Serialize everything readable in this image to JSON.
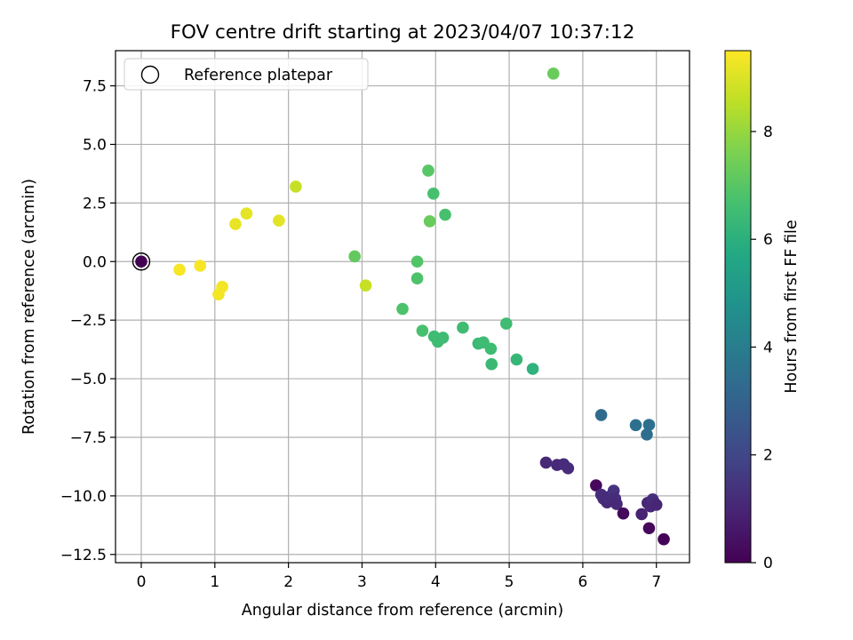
{
  "chart_data": {
    "type": "scatter",
    "title": "FOV centre drift starting at 2023/04/07 10:37:12",
    "xlabel": "Angular distance from reference (arcmin)",
    "ylabel": "Rotation from reference (arcmin)",
    "xlim": [
      -0.35,
      7.45
    ],
    "ylim": [
      -12.85,
      9.0
    ],
    "xticks": [
      0,
      1,
      2,
      3,
      4,
      5,
      6,
      7
    ],
    "xtick_labels": [
      "0",
      "1",
      "2",
      "3",
      "4",
      "5",
      "6",
      "7"
    ],
    "yticks": [
      -12.5,
      -10.0,
      -7.5,
      -5.0,
      -2.5,
      0.0,
      2.5,
      5.0,
      7.5
    ],
    "ytick_labels": [
      "−12.5",
      "−10.0",
      "−7.5",
      "−5.0",
      "−2.5",
      "0.0",
      "2.5",
      "5.0",
      "7.5"
    ],
    "grid": true,
    "legend": {
      "position": "top-left",
      "entries": [
        "Reference platepar"
      ]
    },
    "colorbar": {
      "label": "Hours from first FF file",
      "range": [
        0,
        9.5
      ],
      "ticks": [
        0,
        2,
        4,
        6,
        8
      ],
      "tick_labels": [
        "0",
        "2",
        "4",
        "6",
        "8"
      ],
      "colormap": "viridis"
    },
    "reference_point": {
      "x": 0,
      "y": 0
    },
    "points": [
      {
        "x": 0.0,
        "y": 0.0,
        "h": 0.0
      },
      {
        "x": 0.52,
        "y": -0.35,
        "h": 9.4
      },
      {
        "x": 0.8,
        "y": -0.18,
        "h": 9.4
      },
      {
        "x": 1.1,
        "y": -1.08,
        "h": 9.35
      },
      {
        "x": 1.05,
        "y": -1.4,
        "h": 9.35
      },
      {
        "x": 1.28,
        "y": 1.6,
        "h": 9.2
      },
      {
        "x": 1.43,
        "y": 2.05,
        "h": 9.15
      },
      {
        "x": 1.87,
        "y": 1.75,
        "h": 9.1
      },
      {
        "x": 2.1,
        "y": 3.2,
        "h": 8.7
      },
      {
        "x": 2.9,
        "y": 0.22,
        "h": 7.2
      },
      {
        "x": 3.05,
        "y": -1.02,
        "h": 8.7
      },
      {
        "x": 3.55,
        "y": -2.02,
        "h": 6.8
      },
      {
        "x": 3.75,
        "y": 0.0,
        "h": 6.9
      },
      {
        "x": 3.75,
        "y": -0.72,
        "h": 6.8
      },
      {
        "x": 3.82,
        "y": -2.95,
        "h": 6.7
      },
      {
        "x": 3.9,
        "y": 3.88,
        "h": 7.0
      },
      {
        "x": 3.92,
        "y": 1.72,
        "h": 7.3
      },
      {
        "x": 3.97,
        "y": 2.9,
        "h": 6.7
      },
      {
        "x": 3.98,
        "y": -3.2,
        "h": 6.5
      },
      {
        "x": 4.03,
        "y": -3.42,
        "h": 6.5
      },
      {
        "x": 4.1,
        "y": -3.25,
        "h": 6.5
      },
      {
        "x": 4.13,
        "y": 2.0,
        "h": 6.7
      },
      {
        "x": 4.37,
        "y": -2.82,
        "h": 6.5
      },
      {
        "x": 4.58,
        "y": -3.5,
        "h": 6.4
      },
      {
        "x": 4.65,
        "y": -3.45,
        "h": 6.5
      },
      {
        "x": 4.75,
        "y": -3.72,
        "h": 6.5
      },
      {
        "x": 4.76,
        "y": -4.38,
        "h": 6.4
      },
      {
        "x": 4.96,
        "y": -2.65,
        "h": 6.5
      },
      {
        "x": 5.1,
        "y": -4.18,
        "h": 6.3
      },
      {
        "x": 5.32,
        "y": -4.58,
        "h": 6.1
      },
      {
        "x": 5.6,
        "y": 8.02,
        "h": 7.3
      },
      {
        "x": 5.5,
        "y": -8.58,
        "h": 1.1
      },
      {
        "x": 5.65,
        "y": -8.68,
        "h": 1.1
      },
      {
        "x": 5.74,
        "y": -8.65,
        "h": 1.2
      },
      {
        "x": 5.8,
        "y": -8.82,
        "h": 1.2
      },
      {
        "x": 6.18,
        "y": -9.55,
        "h": 0.2
      },
      {
        "x": 6.25,
        "y": -6.55,
        "h": 3.3
      },
      {
        "x": 6.25,
        "y": -9.95,
        "h": 1.2
      },
      {
        "x": 6.28,
        "y": -10.12,
        "h": 1.2
      },
      {
        "x": 6.33,
        "y": -10.28,
        "h": 1.1
      },
      {
        "x": 6.35,
        "y": -10.1,
        "h": 1.2
      },
      {
        "x": 6.38,
        "y": -10.0,
        "h": 1.2
      },
      {
        "x": 6.42,
        "y": -9.78,
        "h": 1.4
      },
      {
        "x": 6.44,
        "y": -10.12,
        "h": 1.2
      },
      {
        "x": 6.46,
        "y": -10.35,
        "h": 1.1
      },
      {
        "x": 6.55,
        "y": -10.75,
        "h": 0.2
      },
      {
        "x": 6.72,
        "y": -6.98,
        "h": 3.5
      },
      {
        "x": 6.8,
        "y": -10.78,
        "h": 0.9
      },
      {
        "x": 6.87,
        "y": -7.38,
        "h": 3.4
      },
      {
        "x": 6.88,
        "y": -10.3,
        "h": 1.0
      },
      {
        "x": 6.9,
        "y": -6.97,
        "h": 3.5
      },
      {
        "x": 6.9,
        "y": -11.38,
        "h": 0.2
      },
      {
        "x": 6.92,
        "y": -10.45,
        "h": 1.1
      },
      {
        "x": 6.95,
        "y": -10.15,
        "h": 1.3
      },
      {
        "x": 6.97,
        "y": -10.28,
        "h": 1.2
      },
      {
        "x": 7.0,
        "y": -10.38,
        "h": 1.0
      },
      {
        "x": 7.1,
        "y": -11.85,
        "h": 0.1
      }
    ]
  }
}
